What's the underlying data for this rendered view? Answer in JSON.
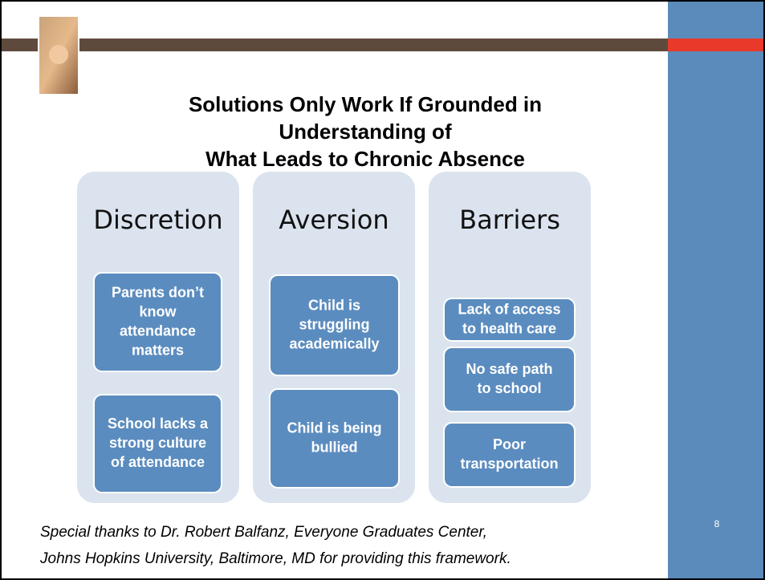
{
  "slide": {
    "title_lines": [
      "Solutions Only Work If Grounded in",
      "Understanding of",
      "What Leads to Chronic Absence"
    ],
    "columns": [
      {
        "heading": "Discretion",
        "items": [
          [
            "Parents don’t",
            "know",
            "attendance",
            "matters"
          ],
          [
            "School lacks a",
            "strong culture",
            "of attendance"
          ]
        ]
      },
      {
        "heading": "Aversion",
        "items": [
          [
            "Child is",
            "struggling",
            "academically"
          ],
          [
            "Child is being",
            "bullied"
          ]
        ]
      },
      {
        "heading": "Barriers",
        "items": [
          [
            "Lack of access",
            "to health care"
          ],
          [
            "No safe path",
            "to school"
          ],
          [
            "Poor",
            "transportation"
          ]
        ]
      }
    ],
    "footer_lines": [
      "Special thanks to Dr. Robert Balfanz, Everyone Graduates Center,",
      "Johns Hopkins University, Baltimore, MD for providing this framework."
    ],
    "page_number": "8"
  }
}
